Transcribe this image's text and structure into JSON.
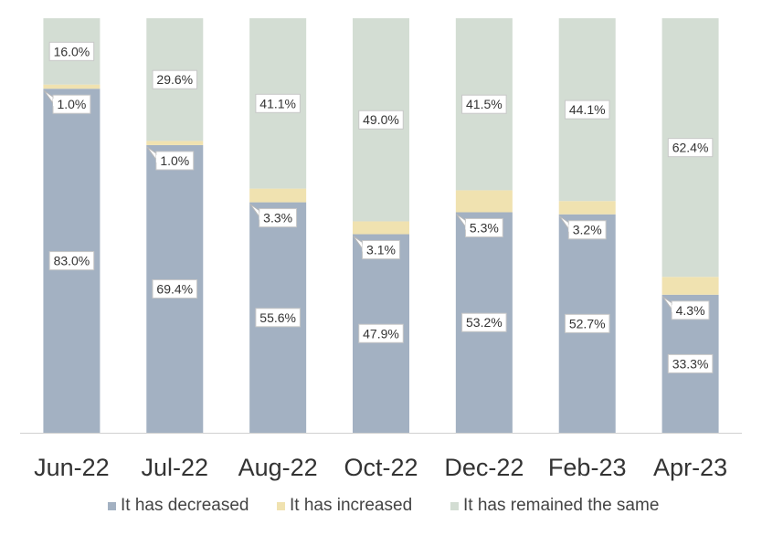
{
  "chart_data": {
    "type": "bar",
    "stacked": true,
    "categories": [
      "Jun-22",
      "Jul-22",
      "Aug-22",
      "Oct-22",
      "Dec-22",
      "Feb-23",
      "Apr-23"
    ],
    "series": [
      {
        "name": "It has decreased",
        "color": "#a3b1c2",
        "values": [
          83.0,
          69.4,
          55.6,
          47.9,
          53.2,
          52.7,
          33.3
        ],
        "labels": [
          "83.0%",
          "69.4%",
          "55.6%",
          "47.9%",
          "53.2%",
          "52.7%",
          "33.3%"
        ]
      },
      {
        "name": "It has increased",
        "color": "#f0e2b0",
        "values": [
          1.0,
          1.0,
          3.3,
          3.1,
          5.3,
          3.2,
          4.3
        ],
        "labels": [
          "1.0%",
          "1.0%",
          "3.3%",
          "3.1%",
          "5.3%",
          "3.2%",
          "4.3%"
        ]
      },
      {
        "name": "It has remained the same",
        "color": "#d3ddd3",
        "values": [
          16.0,
          29.6,
          41.1,
          49.0,
          41.5,
          44.1,
          62.4
        ],
        "labels": [
          "16.0%",
          "29.6%",
          "41.1%",
          "49.0%",
          "41.5%",
          "44.1%",
          "62.4%"
        ]
      }
    ],
    "ylim": [
      0,
      100
    ],
    "grid": false,
    "legend_position": "bottom"
  }
}
